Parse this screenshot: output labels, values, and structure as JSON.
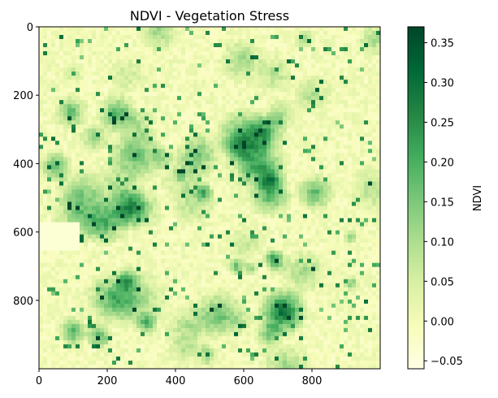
{
  "chart_data": {
    "type": "heatmap",
    "title": "NDVI - Vegetation Stress",
    "colormap": "Greens",
    "colors": {
      "low": "#ffffe5",
      "mid_low": "#d9f0a3",
      "mid": "#78c679",
      "mid_high": "#238443",
      "high": "#004529"
    },
    "image_extent": {
      "x": [
        0,
        1000
      ],
      "y": [
        1000,
        0
      ]
    },
    "x_ticks": [
      "0",
      "200",
      "400",
      "600",
      "800"
    ],
    "x_tick_values": [
      0,
      200,
      400,
      600,
      800
    ],
    "y_ticks": [
      "0",
      "200",
      "400",
      "600",
      "800"
    ],
    "y_tick_values": [
      0,
      200,
      400,
      600,
      800
    ],
    "colorbar": {
      "label": "NDVI",
      "range": [
        -0.06,
        0.37
      ],
      "ticks": [
        "0.35",
        "0.30",
        "0.25",
        "0.20",
        "0.15",
        "0.10",
        "0.05",
        "0.00",
        "−0.05"
      ],
      "tick_values": [
        0.35,
        0.3,
        0.25,
        0.2,
        0.15,
        0.1,
        0.05,
        0.0,
        -0.05
      ]
    }
  }
}
